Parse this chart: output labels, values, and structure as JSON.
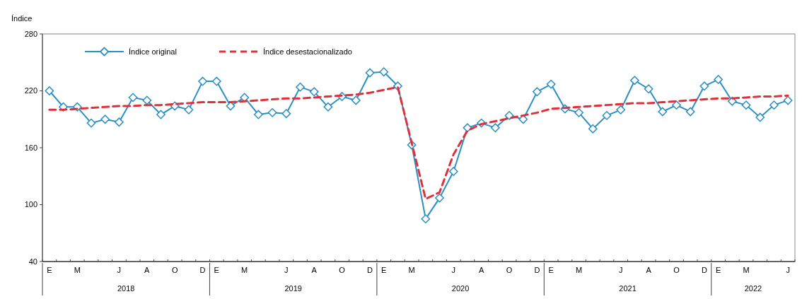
{
  "chart_data": {
    "type": "line",
    "ylabel": "Índice",
    "ylim": [
      40,
      280
    ],
    "yticks": [
      40,
      100,
      160,
      220,
      280
    ],
    "grid": false,
    "legend": "top left",
    "categories": [
      "E",
      null,
      "M",
      null,
      null,
      "J",
      null,
      "A",
      null,
      "O",
      null,
      "D",
      "E",
      null,
      "M",
      null,
      null,
      "J",
      null,
      "A",
      null,
      "O",
      null,
      "D",
      "E",
      null,
      "M",
      null,
      null,
      "J",
      null,
      "A",
      null,
      "O",
      null,
      "D",
      "E",
      null,
      "M",
      null,
      null,
      "J",
      null,
      "A",
      null,
      "O",
      null,
      "D",
      "E",
      null,
      "M",
      null,
      null,
      "J"
    ],
    "annotations": [
      "2018",
      "2019",
      "2020",
      "2021",
      "2022"
    ],
    "series": [
      {
        "name": "Índice original",
        "color": "#2a8fc4",
        "marker": "diamond",
        "line_style": "solid",
        "values": [
          220,
          203,
          203,
          186,
          190,
          187,
          213,
          210,
          195,
          204,
          200,
          230,
          230,
          204,
          213,
          195,
          197,
          196,
          224,
          219,
          203,
          214,
          210,
          239,
          240,
          225,
          163,
          85,
          107,
          135,
          181,
          186,
          181,
          194,
          190,
          219,
          227,
          201,
          197,
          180,
          194,
          200,
          231,
          222,
          198,
          205,
          198,
          225,
          232,
          209,
          205,
          192,
          205,
          210
        ]
      },
      {
        "name": "Índice desestacionalizado",
        "color": "#e0303a",
        "marker": "none",
        "line_style": "dashed",
        "values": [
          200,
          200,
          201,
          202,
          203,
          204,
          204,
          205,
          205,
          206,
          207,
          208,
          208,
          208,
          209,
          210,
          211,
          212,
          212,
          213,
          214,
          215,
          216,
          218,
          221,
          224,
          165,
          106,
          113,
          153,
          178,
          185,
          188,
          191,
          194,
          197,
          201,
          202,
          203,
          204,
          205,
          206,
          207,
          207,
          208,
          209,
          210,
          211,
          212,
          212,
          213,
          214,
          214,
          215
        ]
      }
    ]
  }
}
